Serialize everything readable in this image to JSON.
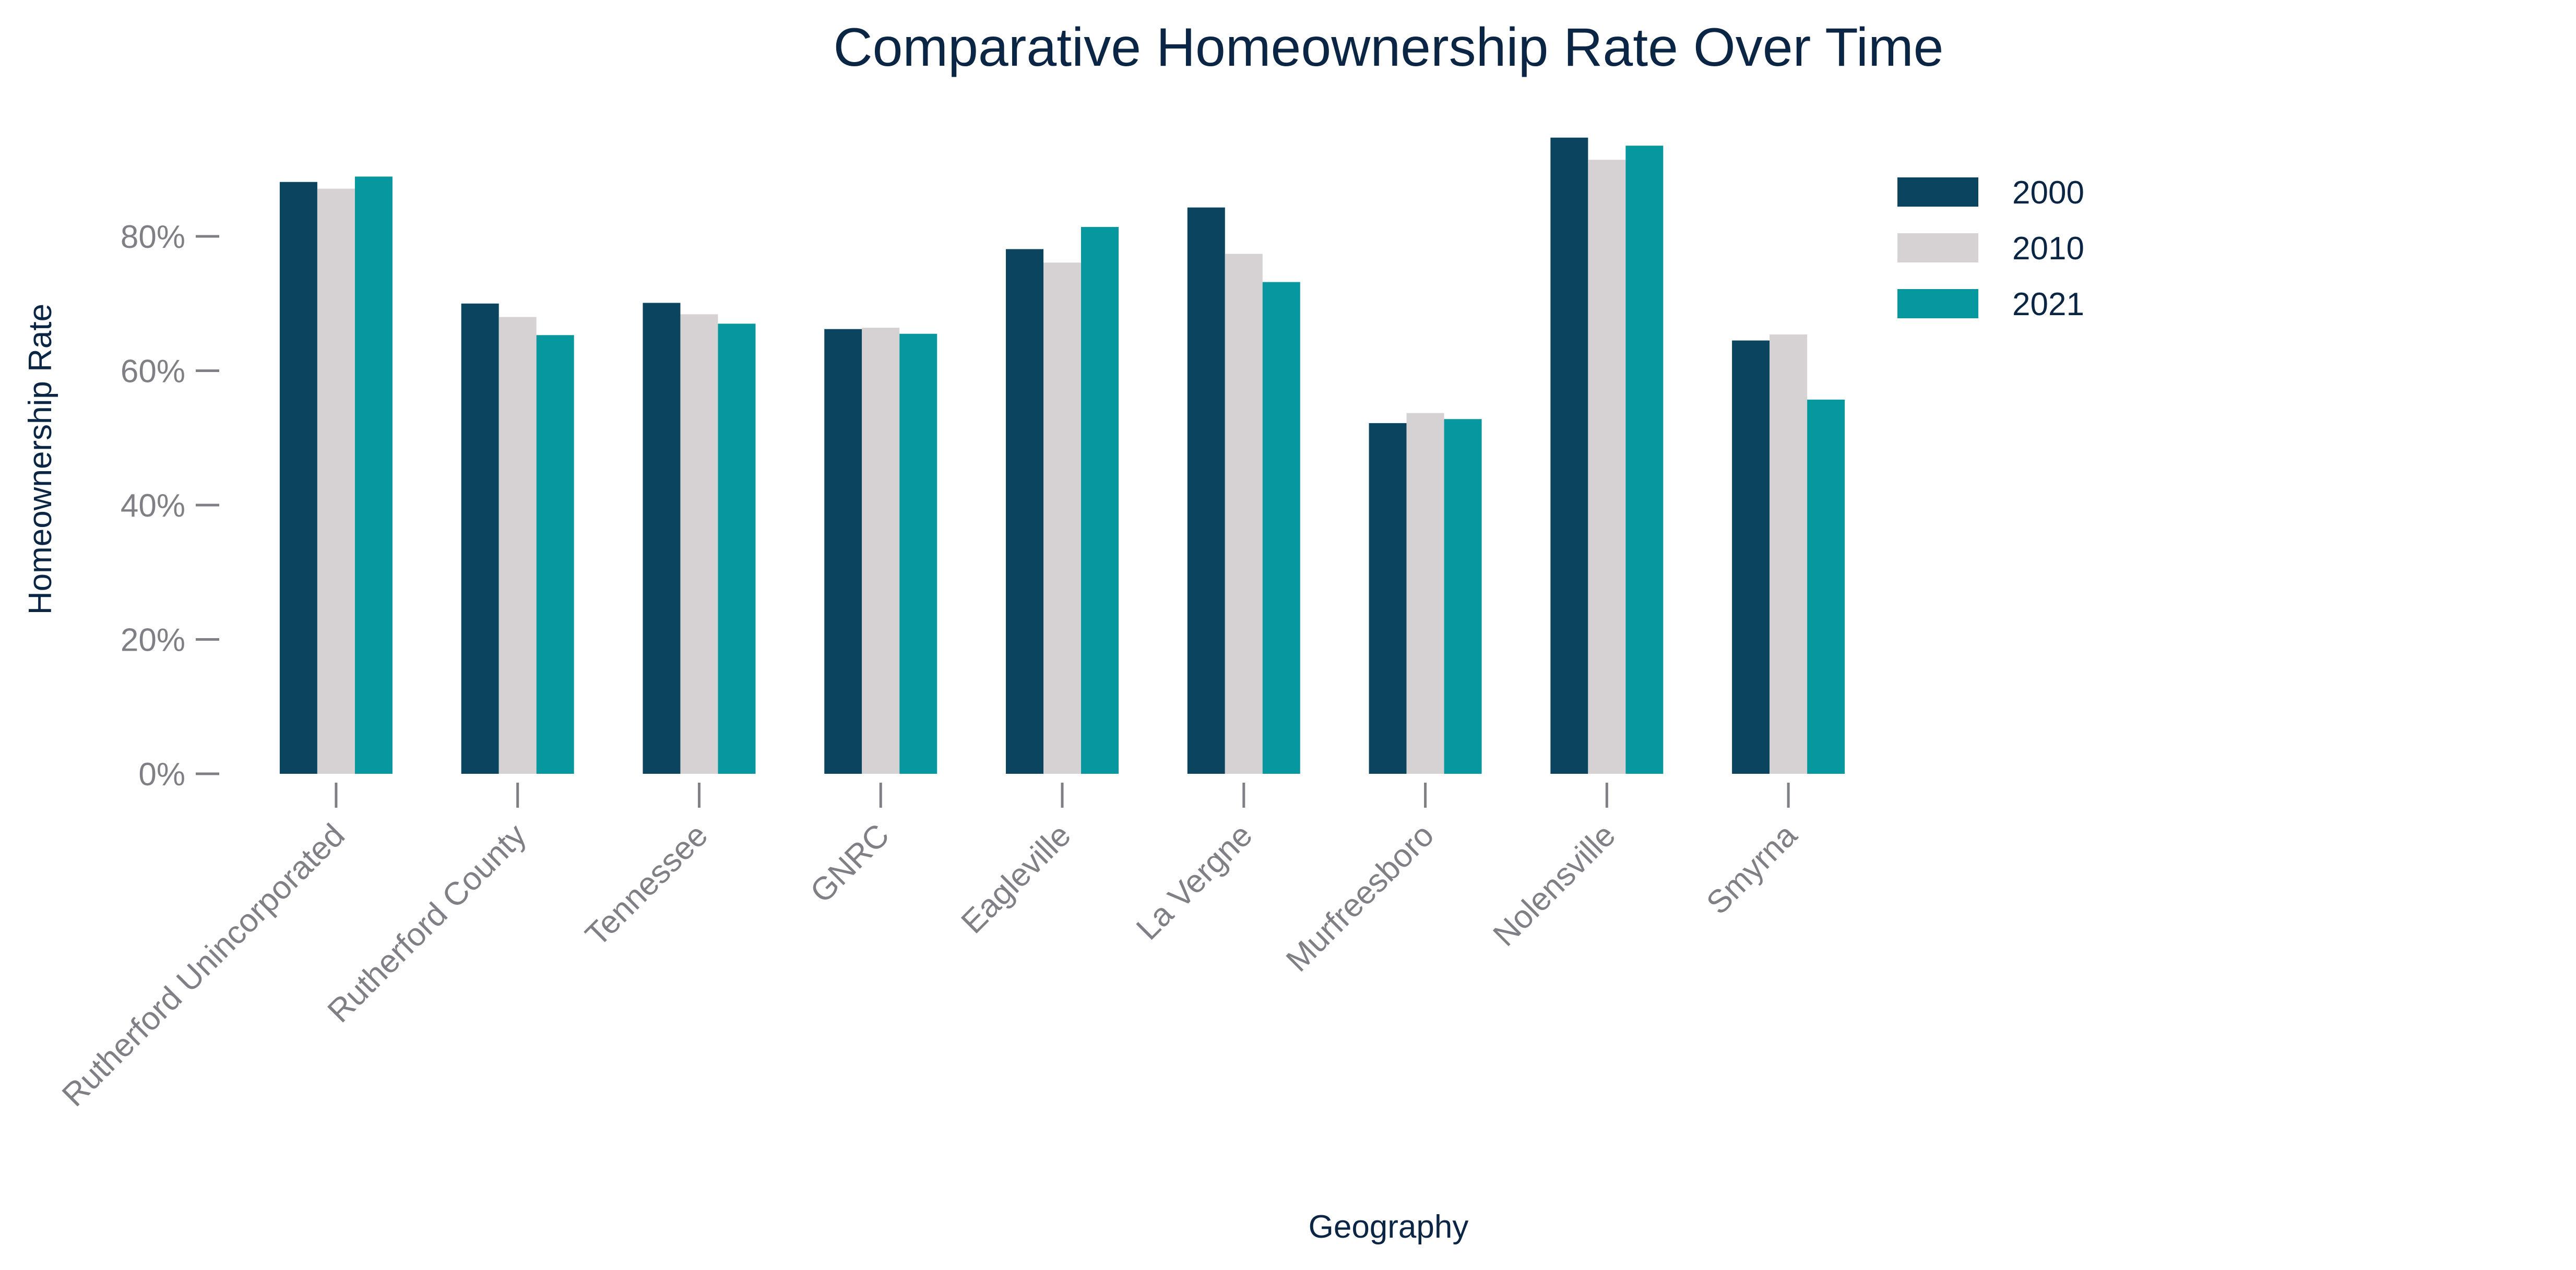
{
  "chart_data": {
    "type": "bar",
    "title": "Comparative Homeownership Rate Over Time",
    "xlabel": "Geography",
    "ylabel": "Homeownership Rate",
    "ylim": [
      0,
      0.96
    ],
    "yticks": [
      0,
      0.2,
      0.4,
      0.6,
      0.8
    ],
    "ytick_labels": [
      "0%",
      "20%",
      "40%",
      "60%",
      "80%"
    ],
    "grid": false,
    "legend_position": "top-right",
    "categories": [
      "Rutherford Unincorporated",
      "Rutherford County",
      "Tennessee",
      "GNRC",
      "Eagleville",
      "La Vergne",
      "Murfreesboro",
      "Nolensville",
      "Smyrna"
    ],
    "series": [
      {
        "name": "2000",
        "color": "#0a445e",
        "values": [
          0.881,
          0.7,
          0.701,
          0.662,
          0.781,
          0.843,
          0.522,
          0.947,
          0.645
        ]
      },
      {
        "name": "2010",
        "color": "#d6d2d3",
        "values": [
          0.871,
          0.68,
          0.684,
          0.664,
          0.761,
          0.774,
          0.537,
          0.914,
          0.654
        ]
      },
      {
        "name": "2021",
        "color": "#07979e",
        "values": [
          0.889,
          0.653,
          0.67,
          0.655,
          0.814,
          0.732,
          0.528,
          0.935,
          0.557
        ]
      }
    ]
  }
}
